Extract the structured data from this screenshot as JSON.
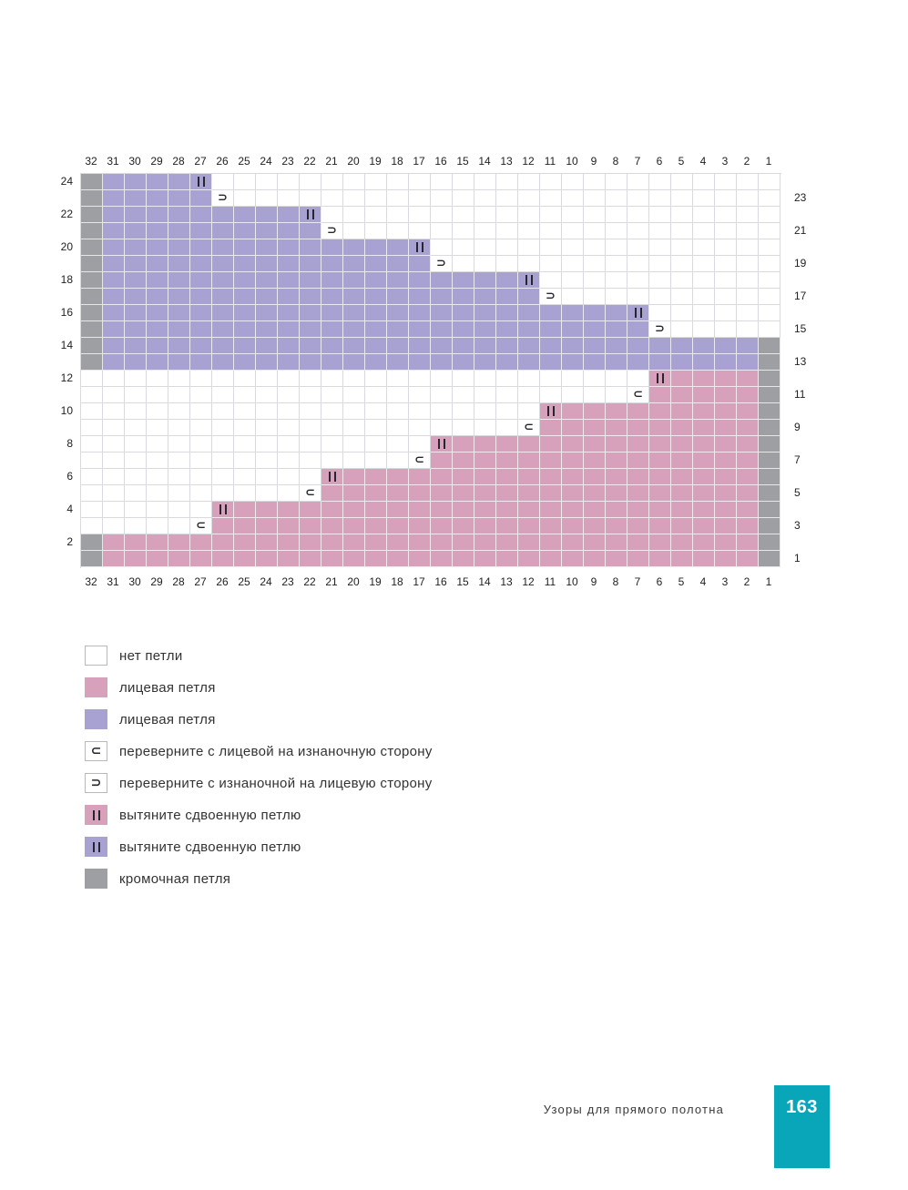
{
  "page": {
    "footer_title": "Узоры для прямого полотна",
    "page_number": "163"
  },
  "colors": {
    "purple": "#a8a2d2",
    "pink": "#d7a0bb",
    "gray": "#9e9fa2",
    "white": "#ffffff",
    "teal": "#09a6ba",
    "symbol": "#26262e",
    "grid_line_white_area": "#d9d9de"
  },
  "chart_data": {
    "type": "heatmap",
    "subtype": "knitting-short-row-chart",
    "columns": [
      32,
      31,
      30,
      29,
      28,
      27,
      26,
      25,
      24,
      23,
      22,
      21,
      20,
      19,
      18,
      17,
      15,
      14,
      13,
      12,
      11,
      10,
      9,
      8,
      7,
      6,
      5,
      4,
      3,
      2,
      1
    ],
    "columns_full": [
      32,
      31,
      30,
      29,
      28,
      27,
      26,
      25,
      24,
      23,
      22,
      21,
      20,
      19,
      18,
      17,
      16,
      15,
      14,
      13,
      12,
      11,
      10,
      9,
      8,
      7,
      6,
      5,
      4,
      3,
      2,
      1
    ],
    "left_row_labels": [
      24,
      22,
      20,
      18,
      16,
      14,
      12,
      10,
      8,
      6,
      4,
      2
    ],
    "right_row_labels": [
      23,
      21,
      19,
      17,
      15,
      13,
      11,
      9,
      7,
      5,
      3,
      1
    ],
    "rows": [
      {
        "row": 24,
        "selvedge": [
          32
        ],
        "fill": {
          "color": "purple",
          "from": 31,
          "to": 27
        },
        "double_at": 27
      },
      {
        "row": 23,
        "selvedge": [
          32
        ],
        "fill": {
          "color": "purple",
          "from": 31,
          "to": 27
        },
        "turn": {
          "col": 26,
          "glyph": "⊃"
        }
      },
      {
        "row": 22,
        "selvedge": [
          32
        ],
        "fill": {
          "color": "purple",
          "from": 31,
          "to": 22
        },
        "double_at": 22
      },
      {
        "row": 21,
        "selvedge": [
          32
        ],
        "fill": {
          "color": "purple",
          "from": 31,
          "to": 22
        },
        "turn": {
          "col": 21,
          "glyph": "⊃"
        }
      },
      {
        "row": 20,
        "selvedge": [
          32
        ],
        "fill": {
          "color": "purple",
          "from": 31,
          "to": 17
        },
        "double_at": 17
      },
      {
        "row": 19,
        "selvedge": [
          32
        ],
        "fill": {
          "color": "purple",
          "from": 31,
          "to": 17
        },
        "turn": {
          "col": 16,
          "glyph": "⊃"
        }
      },
      {
        "row": 18,
        "selvedge": [
          32
        ],
        "fill": {
          "color": "purple",
          "from": 31,
          "to": 12
        },
        "double_at": 12
      },
      {
        "row": 17,
        "selvedge": [
          32
        ],
        "fill": {
          "color": "purple",
          "from": 31,
          "to": 12
        },
        "turn": {
          "col": 11,
          "glyph": "⊃"
        }
      },
      {
        "row": 16,
        "selvedge": [
          32
        ],
        "fill": {
          "color": "purple",
          "from": 31,
          "to": 7
        },
        "double_at": 7
      },
      {
        "row": 15,
        "selvedge": [
          32
        ],
        "fill": {
          "color": "purple",
          "from": 31,
          "to": 7
        },
        "turn": {
          "col": 6,
          "glyph": "⊃"
        }
      },
      {
        "row": 14,
        "selvedge": [
          32,
          1
        ],
        "fill": {
          "color": "purple",
          "from": 31,
          "to": 2
        }
      },
      {
        "row": 13,
        "selvedge": [
          32,
          1
        ],
        "fill": {
          "color": "purple",
          "from": 31,
          "to": 2
        }
      },
      {
        "row": 12,
        "selvedge": [
          1
        ],
        "fill": {
          "color": "pink",
          "from": 6,
          "to": 2
        },
        "double_at": 6
      },
      {
        "row": 11,
        "selvedge": [
          1
        ],
        "fill": {
          "color": "pink",
          "from": 6,
          "to": 2
        },
        "turn": {
          "col": 7,
          "glyph": "⊂"
        }
      },
      {
        "row": 10,
        "selvedge": [
          1
        ],
        "fill": {
          "color": "pink",
          "from": 11,
          "to": 2
        },
        "double_at": 11
      },
      {
        "row": 9,
        "selvedge": [
          1
        ],
        "fill": {
          "color": "pink",
          "from": 11,
          "to": 2
        },
        "turn": {
          "col": 12,
          "glyph": "⊂"
        }
      },
      {
        "row": 8,
        "selvedge": [
          1
        ],
        "fill": {
          "color": "pink",
          "from": 16,
          "to": 2
        },
        "double_at": 16
      },
      {
        "row": 7,
        "selvedge": [
          1
        ],
        "fill": {
          "color": "pink",
          "from": 16,
          "to": 2
        },
        "turn": {
          "col": 17,
          "glyph": "⊂"
        }
      },
      {
        "row": 6,
        "selvedge": [
          1
        ],
        "fill": {
          "color": "pink",
          "from": 21,
          "to": 2
        },
        "double_at": 21
      },
      {
        "row": 5,
        "selvedge": [
          1
        ],
        "fill": {
          "color": "pink",
          "from": 21,
          "to": 2
        },
        "turn": {
          "col": 22,
          "glyph": "⊂"
        }
      },
      {
        "row": 4,
        "selvedge": [
          1
        ],
        "fill": {
          "color": "pink",
          "from": 26,
          "to": 2
        },
        "double_at": 26
      },
      {
        "row": 3,
        "selvedge": [
          1
        ],
        "fill": {
          "color": "pink",
          "from": 26,
          "to": 2
        },
        "turn": {
          "col": 27,
          "glyph": "⊂"
        }
      },
      {
        "row": 2,
        "selvedge": [
          32,
          1
        ],
        "fill": {
          "color": "pink",
          "from": 31,
          "to": 2
        }
      },
      {
        "row": 1,
        "selvedge": [
          32,
          1
        ],
        "fill": {
          "color": "pink",
          "from": 31,
          "to": 2
        }
      }
    ]
  },
  "legend": [
    {
      "swatch": "white",
      "symbol": "",
      "label": "нет петли"
    },
    {
      "swatch": "pink",
      "symbol": "",
      "label": "лицевая петля"
    },
    {
      "swatch": "purple",
      "symbol": "",
      "label": "лицевая петля"
    },
    {
      "swatch": "white",
      "symbol": "⊂",
      "label": "переверните с лицевой на изнаночную сторону"
    },
    {
      "swatch": "white",
      "symbol": "⊃",
      "label": "переверните с изнаночной на лицевую сторону"
    },
    {
      "swatch": "pink",
      "symbol": "||",
      "label": "вытяните сдвоенную петлю"
    },
    {
      "swatch": "purple",
      "symbol": "||",
      "label": "вытяните сдвоенную петлю"
    },
    {
      "swatch": "gray",
      "symbol": "",
      "label": "кромочная петля"
    }
  ]
}
